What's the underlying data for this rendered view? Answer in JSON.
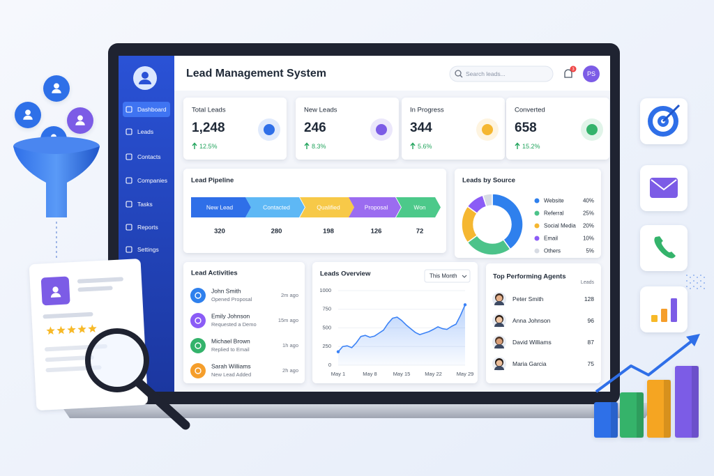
{
  "header": {
    "title": "Lead Management System",
    "search_placeholder": "Search leads...",
    "notifications": 3,
    "avatar_initials": "PS"
  },
  "sidebar": {
    "items": [
      "Dashboard",
      "Leads",
      "Contacts",
      "Companies",
      "Tasks",
      "Reports",
      "Settings"
    ],
    "active_index": 0
  },
  "stats": [
    {
      "label": "Total Leads",
      "value": "1,248",
      "change": "12.5%",
      "color": "#2f6fe8"
    },
    {
      "label": "New Leads",
      "value": "246",
      "change": "8.3%",
      "color": "#7c5ce6"
    },
    {
      "label": "In Progress",
      "value": "344",
      "change": "5.6%",
      "color": "#f5b731"
    },
    {
      "label": "Converted",
      "value": "658",
      "change": "15.2%",
      "color": "#34b36b"
    }
  ],
  "pipeline": {
    "title": "Lead Pipeline",
    "stages": [
      {
        "name": "New Lead",
        "count": 320,
        "color": "#2f6fe8"
      },
      {
        "name": "Contacted",
        "count": 280,
        "color": "#5eb8f5"
      },
      {
        "name": "Qualified",
        "count": 198,
        "color": "#f7c948"
      },
      {
        "name": "Proposal",
        "count": 126,
        "color": "#9b6cf0"
      },
      {
        "name": "Won",
        "count": 72,
        "color": "#4cc98a"
      }
    ]
  },
  "leads_by_source": {
    "type": "pie",
    "title": "Leads by Source",
    "categories": [
      "Website",
      "Referral",
      "Social Media",
      "Email",
      "Others"
    ],
    "values": [
      40,
      25,
      20,
      10,
      5
    ],
    "value_labels": [
      "40%",
      "25%",
      "20%",
      "10%",
      "5%"
    ],
    "colors": [
      "#2f80ed",
      "#4cc38a",
      "#f5b731",
      "#8b5cf6",
      "#d7dbe3"
    ]
  },
  "leads_overview": {
    "type": "line",
    "title": "Leads Overview",
    "period": "This Month",
    "categories": [
      "May 1",
      null,
      null,
      null,
      null,
      null,
      null,
      "May 8",
      null,
      null,
      null,
      null,
      null,
      null,
      "May 15",
      null,
      null,
      null,
      null,
      null,
      null,
      "May 22",
      null,
      null,
      null,
      null,
      null,
      null,
      "May 29"
    ],
    "values": [
      180,
      250,
      260,
      235,
      300,
      385,
      400,
      375,
      390,
      430,
      470,
      560,
      630,
      645,
      600,
      540,
      490,
      440,
      410,
      430,
      450,
      480,
      515,
      490,
      480,
      520,
      550,
      670,
      810
    ],
    "color": "#3b82f6",
    "ylim": [
      0,
      1000
    ],
    "yticks": [
      0,
      250,
      500,
      750,
      1000
    ]
  },
  "activities": {
    "title": "Lead Activities",
    "items": [
      {
        "name": "John Smith",
        "action": "Opened Proposal",
        "time": "2m ago",
        "color": "#2f80ed"
      },
      {
        "name": "Emily Johnson",
        "action": "Requested a Demo",
        "time": "15m ago",
        "color": "#8b5cf6"
      },
      {
        "name": "Michael Brown",
        "action": "Replied to Email",
        "time": "1h ago",
        "color": "#34b36b"
      },
      {
        "name": "Sarah Williams",
        "action": "New Lead Added",
        "time": "2h ago",
        "color": "#f59e2b"
      }
    ]
  },
  "top_agents": {
    "title": "Top Performing Agents",
    "column": "Leads",
    "agents": [
      {
        "name": "Peter Smith",
        "leads": 128
      },
      {
        "name": "Anna Johnson",
        "leads": 96
      },
      {
        "name": "David Williams",
        "leads": 87
      },
      {
        "name": "Maria Garcia",
        "leads": 75
      }
    ]
  }
}
